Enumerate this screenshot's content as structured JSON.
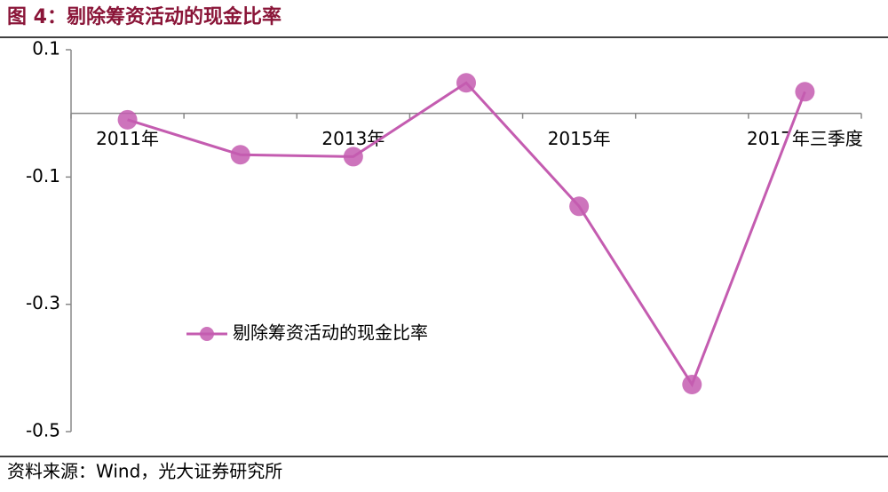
{
  "chart_data": {
    "type": "line",
    "title": "图 4：剔除筹资活动的现金比率",
    "source": "资料来源：Wind，光大证券研究所",
    "categories": [
      "2011年",
      null,
      "2013年",
      null,
      "2015年",
      null,
      "2017年三季度"
    ],
    "series": [
      {
        "name": "剔除筹资活动的现金比率",
        "color": "#c45cb0",
        "values": [
          -0.01,
          -0.065,
          -0.068,
          0.048,
          -0.146,
          -0.426,
          0.034
        ]
      }
    ],
    "ylim": [
      -0.5,
      0.1
    ],
    "yticks": [
      0.1,
      -0.1,
      -0.3,
      -0.5
    ]
  }
}
